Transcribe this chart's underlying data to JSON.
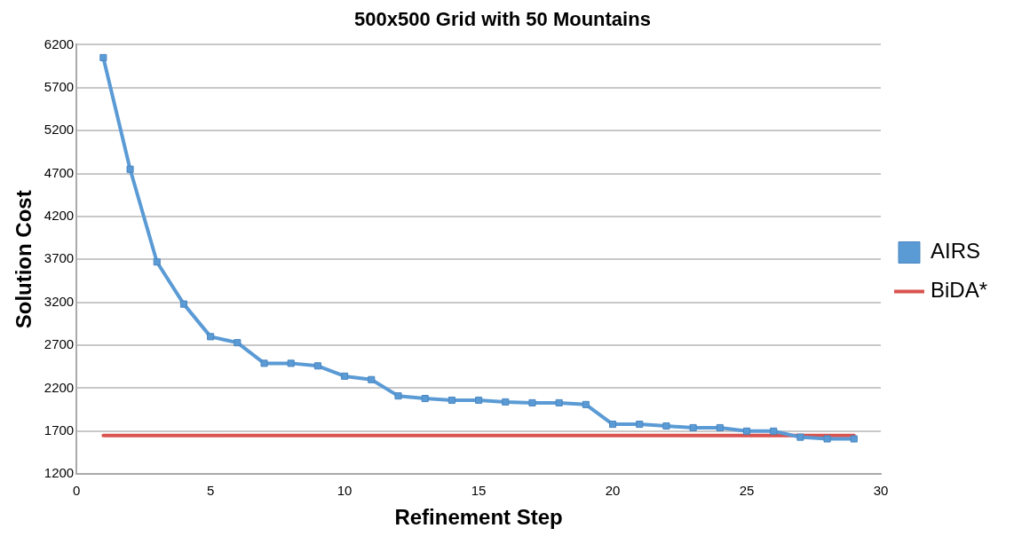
{
  "chart_data": {
    "type": "line",
    "title": "500x500 Grid with 50 Mountains",
    "xlabel": "Refinement Step",
    "ylabel": "Solution Cost",
    "x": [
      1,
      2,
      3,
      4,
      5,
      6,
      7,
      8,
      9,
      10,
      11,
      12,
      13,
      14,
      15,
      16,
      17,
      18,
      19,
      20,
      21,
      22,
      23,
      24,
      25,
      26,
      27,
      28,
      29
    ],
    "series": [
      {
        "name": "AIRS",
        "color": "#5b9bd5",
        "marker": "square",
        "values": [
          6050,
          4750,
          3670,
          3180,
          2800,
          2730,
          2490,
          2490,
          2460,
          2340,
          2300,
          2110,
          2080,
          2060,
          2060,
          2040,
          2030,
          2030,
          2010,
          1780,
          1780,
          1760,
          1740,
          1740,
          1700,
          1700,
          1630,
          1610,
          1610
        ]
      },
      {
        "name": "BiDA*",
        "color": "#d9534f",
        "marker": "none",
        "x": [
          1,
          29
        ],
        "values": [
          1650,
          1650
        ]
      }
    ],
    "xlim": [
      0,
      30
    ],
    "xticks": [
      0,
      5,
      10,
      15,
      20,
      25,
      30
    ],
    "ylim": [
      1200,
      6200
    ],
    "yticks": [
      1200,
      1700,
      2200,
      2700,
      3200,
      3700,
      4200,
      4700,
      5200,
      5700,
      6200
    ],
    "grid": "y",
    "legend": "right"
  }
}
